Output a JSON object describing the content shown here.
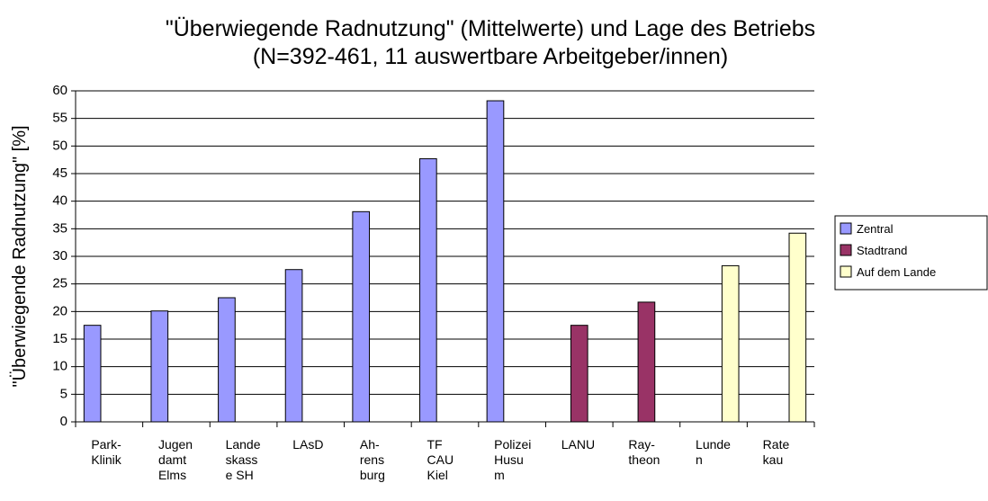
{
  "chart_data": {
    "type": "bar",
    "title": [
      "\"Überwiegende Radnutzung\" (Mittelwerte) und Lage des Betriebs",
      "(N=392-461, 11 auswertbare Arbeitgeber/innen)"
    ],
    "ylabel": "\"Überwiegende Radnutzung\" [%]",
    "categories": [
      [
        "Park-",
        "Klinik"
      ],
      [
        "Jugen",
        "damt",
        "Elms"
      ],
      [
        "Lande",
        "skass",
        "e SH"
      ],
      [
        "LAsD"
      ],
      [
        "Ah-",
        "rens",
        "burg"
      ],
      [
        "TF",
        "CAU",
        "Kiel"
      ],
      [
        "Polizei",
        "Husu",
        "m"
      ],
      [
        "LANU"
      ],
      [
        "Ray-",
        "theon"
      ],
      [
        "Lunde",
        "n"
      ],
      [
        "Rate",
        "kau"
      ]
    ],
    "series": [
      {
        "name": "Zentral",
        "color": "#9999ff",
        "values": [
          17.5,
          20.1,
          22.5,
          27.6,
          38.1,
          47.7,
          58.2,
          null,
          null,
          null,
          null
        ]
      },
      {
        "name": "Stadtrand",
        "color": "#993366",
        "values": [
          null,
          null,
          null,
          null,
          null,
          null,
          null,
          17.5,
          21.7,
          null,
          null
        ]
      },
      {
        "name": "Auf dem Lande",
        "color": "#ffffcc",
        "values": [
          null,
          null,
          null,
          null,
          null,
          null,
          null,
          null,
          null,
          28.3,
          34.2
        ]
      }
    ],
    "ylim": [
      0,
      60
    ],
    "yticks": [
      0,
      5,
      10,
      15,
      20,
      25,
      30,
      35,
      40,
      45,
      50,
      55,
      60
    ],
    "grid": true,
    "legend": "right"
  }
}
